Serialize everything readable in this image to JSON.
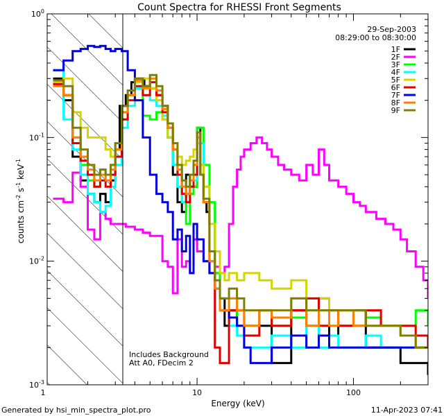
{
  "chart_data": {
    "type": "line",
    "title": "Count Spectra for RHESSI Front Segments",
    "xlabel": "Energy (keV)",
    "ylabel": {
      "base": "counts cm",
      "exp1": "-2",
      "mid1": " s",
      "exp2": "-1",
      "mid2": " keV",
      "exp3": "-1"
    },
    "xscale": "log",
    "yscale": "log",
    "xlim": [
      1.1,
      300
    ],
    "ylim": [
      0.001,
      1.0
    ],
    "x_ticks": [
      {
        "value": 1,
        "label": "1"
      },
      {
        "value": 10,
        "label": "10"
      },
      {
        "value": 100,
        "label": "100"
      }
    ],
    "y_ticks": [
      {
        "value": 1,
        "base": "10",
        "exp": "0"
      },
      {
        "value": 0.1,
        "base": "10",
        "exp": "-1"
      },
      {
        "value": 0.01,
        "base": "10",
        "exp": "-2"
      },
      {
        "value": 0.001,
        "base": "10",
        "exp": "-3"
      }
    ],
    "legend": {
      "position": "top-right",
      "date": "29-Sep-2003",
      "time_range": "08:29:00 to 08:30:00"
    },
    "annotations": [
      "Includes Background",
      "Att A0, FDecim 2"
    ],
    "shaded_region": {
      "x_from": 1.1,
      "x_to": 3.0,
      "style": "diagonal-hatch"
    },
    "series": [
      {
        "name": "1F",
        "color": "#000000",
        "x": [
          1.2,
          1.4,
          1.6,
          1.8,
          2.0,
          2.2,
          2.4,
          2.6,
          2.8,
          3.0,
          3.2,
          3.5,
          3.8,
          4.2,
          4.6,
          5.0,
          5.5,
          6.0,
          6.5,
          7.0,
          7.5,
          8.0,
          8.5,
          9.0,
          9.5,
          10,
          10.5,
          11,
          11.5,
          12,
          13,
          14,
          15,
          16,
          18,
          20,
          25,
          30,
          40,
          50,
          60,
          70,
          80,
          100,
          120,
          150,
          200,
          250,
          300
        ],
        "y": [
          0.3,
          0.2,
          0.07,
          0.045,
          0.035,
          0.03,
          0.035,
          0.03,
          0.045,
          0.08,
          0.18,
          0.22,
          0.28,
          0.3,
          0.26,
          0.25,
          0.22,
          0.18,
          0.1,
          0.05,
          0.03,
          0.025,
          0.05,
          0.035,
          0.04,
          0.12,
          0.05,
          0.03,
          0.025,
          0.02,
          0.008,
          0.005,
          0.003,
          0.004,
          0.003,
          0.003,
          0.003,
          0.0015,
          0.004,
          0.003,
          0.005,
          0.0025,
          0.003,
          0.004,
          0.002,
          0.002,
          0.0015,
          0.0015,
          0.0012
        ]
      },
      {
        "name": "2F",
        "color": "#ff00ff",
        "x": [
          1.2,
          1.4,
          1.6,
          1.8,
          2.0,
          2.2,
          2.4,
          2.6,
          2.8,
          3.0,
          3.5,
          4.0,
          4.5,
          5.0,
          5.5,
          6.0,
          6.5,
          7.0,
          7.5,
          8.0,
          8.5,
          9.0,
          9.5,
          10,
          11,
          12,
          13,
          14,
          15,
          16,
          17,
          18,
          19,
          20,
          22,
          24,
          26,
          28,
          30,
          33,
          36,
          40,
          45,
          50,
          55,
          60,
          65,
          70,
          80,
          90,
          100,
          110,
          120,
          140,
          160,
          180,
          200,
          220,
          250,
          280,
          300
        ],
        "y": [
          0.032,
          0.03,
          0.052,
          0.04,
          0.018,
          0.015,
          0.025,
          0.022,
          0.02,
          0.02,
          0.019,
          0.018,
          0.017,
          0.016,
          0.016,
          0.01,
          0.009,
          0.0055,
          0.015,
          0.009,
          0.01,
          0.008,
          0.015,
          0.012,
          0.01,
          0.01,
          0.009,
          0.008,
          0.009,
          0.02,
          0.04,
          0.055,
          0.07,
          0.08,
          0.09,
          0.1,
          0.09,
          0.08,
          0.07,
          0.06,
          0.055,
          0.05,
          0.045,
          0.06,
          0.05,
          0.08,
          0.06,
          0.045,
          0.04,
          0.035,
          0.03,
          0.028,
          0.025,
          0.022,
          0.02,
          0.018,
          0.015,
          0.012,
          0.009,
          0.007,
          0.005
        ]
      },
      {
        "name": "3F",
        "color": "#00ff00",
        "x": [
          1.2,
          1.4,
          1.6,
          1.8,
          2.0,
          2.2,
          2.4,
          2.6,
          2.8,
          3.0,
          3.3,
          3.6,
          4.0,
          4.5,
          5.0,
          5.5,
          6.0,
          6.5,
          7.0,
          7.5,
          8.0,
          8.5,
          9.0,
          9.5,
          10,
          11,
          12,
          13,
          14,
          16,
          18,
          20,
          25,
          30,
          40,
          50,
          60,
          70,
          80,
          100,
          120,
          150,
          200,
          250,
          300
        ],
        "y": [
          0.28,
          0.22,
          0.1,
          0.06,
          0.045,
          0.04,
          0.055,
          0.05,
          0.06,
          0.09,
          0.16,
          0.22,
          0.25,
          0.15,
          0.14,
          0.16,
          0.14,
          0.1,
          0.06,
          0.04,
          0.03,
          0.02,
          0.035,
          0.04,
          0.12,
          0.06,
          0.03,
          0.008,
          0.004,
          0.005,
          0.003,
          0.003,
          0.004,
          0.003,
          0.0035,
          0.004,
          0.003,
          0.003,
          0.004,
          0.003,
          0.0035,
          0.003,
          0.003,
          0.004,
          0.003
        ]
      },
      {
        "name": "4F",
        "color": "#00ffff",
        "x": [
          1.2,
          1.4,
          1.6,
          1.8,
          2.0,
          2.2,
          2.4,
          2.6,
          2.8,
          3.0,
          3.3,
          3.6,
          4.0,
          4.5,
          5.0,
          5.5,
          6.0,
          6.5,
          7.0,
          7.5,
          8.0,
          8.5,
          9.0,
          9.5,
          10,
          11,
          12,
          13,
          14,
          16,
          18,
          20,
          25,
          30,
          40,
          50,
          60,
          70,
          80,
          100,
          120,
          150,
          200,
          250,
          300
        ],
        "y": [
          0.35,
          0.14,
          0.08,
          0.05,
          0.035,
          0.03,
          0.025,
          0.028,
          0.04,
          0.06,
          0.12,
          0.18,
          0.25,
          0.22,
          0.2,
          0.18,
          0.15,
          0.1,
          0.06,
          0.04,
          0.03,
          0.035,
          0.04,
          0.045,
          0.09,
          0.04,
          0.02,
          0.006,
          0.004,
          0.003,
          0.0025,
          0.002,
          0.002,
          0.0025,
          0.002,
          0.003,
          0.002,
          0.0025,
          0.002,
          0.002,
          0.0025,
          0.002,
          0.002,
          0.002,
          0.002
        ]
      },
      {
        "name": "5F",
        "color": "#d4d400",
        "x": [
          1.2,
          1.4,
          1.6,
          1.8,
          2.0,
          2.2,
          2.4,
          2.6,
          2.8,
          3.0,
          3.3,
          3.6,
          4.0,
          4.5,
          5.0,
          5.5,
          6.0,
          6.5,
          7.0,
          7.5,
          8.0,
          8.5,
          9.0,
          9.5,
          10,
          10.5,
          11,
          12,
          13,
          14,
          15,
          16,
          18,
          20,
          25,
          30,
          40,
          50,
          60,
          70,
          80,
          100,
          120,
          150,
          200,
          250,
          300
        ],
        "y": [
          0.28,
          0.3,
          0.16,
          0.12,
          0.1,
          0.1,
          0.1,
          0.08,
          0.07,
          0.08,
          0.14,
          0.22,
          0.28,
          0.3,
          0.25,
          0.2,
          0.14,
          0.1,
          0.08,
          0.07,
          0.06,
          0.065,
          0.07,
          0.08,
          0.09,
          0.06,
          0.04,
          0.02,
          0.012,
          0.008,
          0.007,
          0.008,
          0.007,
          0.008,
          0.007,
          0.006,
          0.007,
          0.005,
          0.005,
          0.004,
          0.004,
          0.003,
          0.003,
          0.003,
          0.0025,
          0.002,
          0.002
        ]
      },
      {
        "name": "6F",
        "color": "#e00000",
        "x": [
          1.2,
          1.4,
          1.6,
          1.8,
          2.0,
          2.2,
          2.4,
          2.6,
          2.8,
          3.0,
          3.3,
          3.6,
          4.0,
          4.5,
          5.0,
          5.5,
          6.0,
          6.5,
          7.0,
          7.5,
          8.0,
          8.5,
          9.0,
          9.5,
          10,
          10.5,
          11,
          12,
          13,
          14,
          16,
          18,
          20,
          25,
          30,
          40,
          50,
          60,
          70,
          80,
          100,
          120,
          150,
          200,
          250,
          300
        ],
        "y": [
          0.27,
          0.22,
          0.09,
          0.065,
          0.05,
          0.04,
          0.045,
          0.04,
          0.05,
          0.07,
          0.14,
          0.2,
          0.26,
          0.22,
          0.28,
          0.22,
          0.16,
          0.12,
          0.08,
          0.05,
          0.035,
          0.03,
          0.04,
          0.05,
          0.11,
          0.05,
          0.03,
          0.008,
          0.002,
          0.0015,
          0.004,
          0.004,
          0.0025,
          0.004,
          0.003,
          0.004,
          0.005,
          0.003,
          0.004,
          0.003,
          0.003,
          0.004,
          0.003,
          0.003,
          0.0025,
          0.002
        ]
      },
      {
        "name": "7F",
        "color": "#0000e0",
        "x": [
          1.2,
          1.4,
          1.6,
          1.8,
          2.0,
          2.2,
          2.4,
          2.6,
          2.8,
          3.0,
          3.3,
          3.6,
          4.0,
          4.5,
          5.0,
          5.5,
          6.0,
          6.5,
          7.0,
          7.5,
          8.0,
          8.5,
          9.0,
          9.5,
          10,
          11,
          12,
          13,
          14,
          16,
          18,
          20,
          22,
          25,
          30,
          40,
          50,
          60,
          70,
          80,
          100,
          120,
          150,
          200,
          250,
          300
        ],
        "y": [
          0.35,
          0.42,
          0.5,
          0.52,
          0.55,
          0.54,
          0.55,
          0.52,
          0.5,
          0.52,
          0.5,
          0.35,
          0.2,
          0.1,
          0.05,
          0.035,
          0.03,
          0.025,
          0.015,
          0.018,
          0.012,
          0.016,
          0.008,
          0.02,
          0.015,
          0.01,
          0.008,
          0.006,
          0.004,
          0.0035,
          0.003,
          0.002,
          0.0015,
          0.0015,
          0.002,
          0.0025,
          0.002,
          0.0025,
          0.002,
          0.002,
          0.002,
          0.002,
          0.002,
          0.002,
          0.002,
          0.002
        ]
      },
      {
        "name": "8F",
        "color": "#ff8000",
        "x": [
          1.2,
          1.4,
          1.6,
          1.8,
          2.0,
          2.2,
          2.4,
          2.6,
          2.8,
          3.0,
          3.3,
          3.6,
          4.0,
          4.5,
          5.0,
          5.5,
          6.0,
          6.5,
          7.0,
          7.5,
          8.0,
          8.5,
          9.0,
          9.5,
          10,
          10.5,
          11,
          12,
          13,
          14,
          16,
          18,
          20,
          25,
          30,
          40,
          50,
          60,
          70,
          80,
          100,
          120,
          150,
          200,
          250,
          300
        ],
        "y": [
          0.26,
          0.22,
          0.1,
          0.07,
          0.055,
          0.045,
          0.05,
          0.045,
          0.055,
          0.08,
          0.16,
          0.22,
          0.29,
          0.25,
          0.3,
          0.24,
          0.17,
          0.12,
          0.08,
          0.055,
          0.04,
          0.035,
          0.045,
          0.06,
          0.1,
          0.05,
          0.03,
          0.01,
          0.006,
          0.004,
          0.005,
          0.004,
          0.003,
          0.004,
          0.0035,
          0.005,
          0.003,
          0.004,
          0.003,
          0.004,
          0.003,
          0.003,
          0.003,
          0.0025,
          0.002,
          0.002
        ]
      },
      {
        "name": "9F",
        "color": "#808000",
        "x": [
          1.2,
          1.4,
          1.6,
          1.8,
          2.0,
          2.2,
          2.4,
          2.6,
          2.8,
          3.0,
          3.3,
          3.6,
          4.0,
          4.5,
          5.0,
          5.5,
          6.0,
          6.5,
          7.0,
          7.5,
          8.0,
          8.5,
          9.0,
          9.5,
          10,
          10.5,
          11,
          12,
          13,
          14,
          16,
          18,
          20,
          25,
          30,
          40,
          50,
          60,
          70,
          80,
          100,
          120,
          150,
          200,
          250,
          300
        ],
        "y": [
          0.29,
          0.26,
          0.12,
          0.08,
          0.06,
          0.05,
          0.055,
          0.05,
          0.06,
          0.09,
          0.18,
          0.24,
          0.3,
          0.26,
          0.32,
          0.26,
          0.18,
          0.13,
          0.09,
          0.06,
          0.045,
          0.04,
          0.05,
          0.065,
          0.11,
          0.05,
          0.032,
          0.012,
          0.007,
          0.005,
          0.006,
          0.005,
          0.004,
          0.004,
          0.004,
          0.005,
          0.004,
          0.004,
          0.004,
          0.004,
          0.004,
          0.003,
          0.003,
          0.0025,
          0.002,
          0.002
        ]
      }
    ]
  },
  "footer": {
    "left": "Generated by hsi_min_spectra_plot.pro",
    "right": "11-Apr-2023 07:41"
  }
}
